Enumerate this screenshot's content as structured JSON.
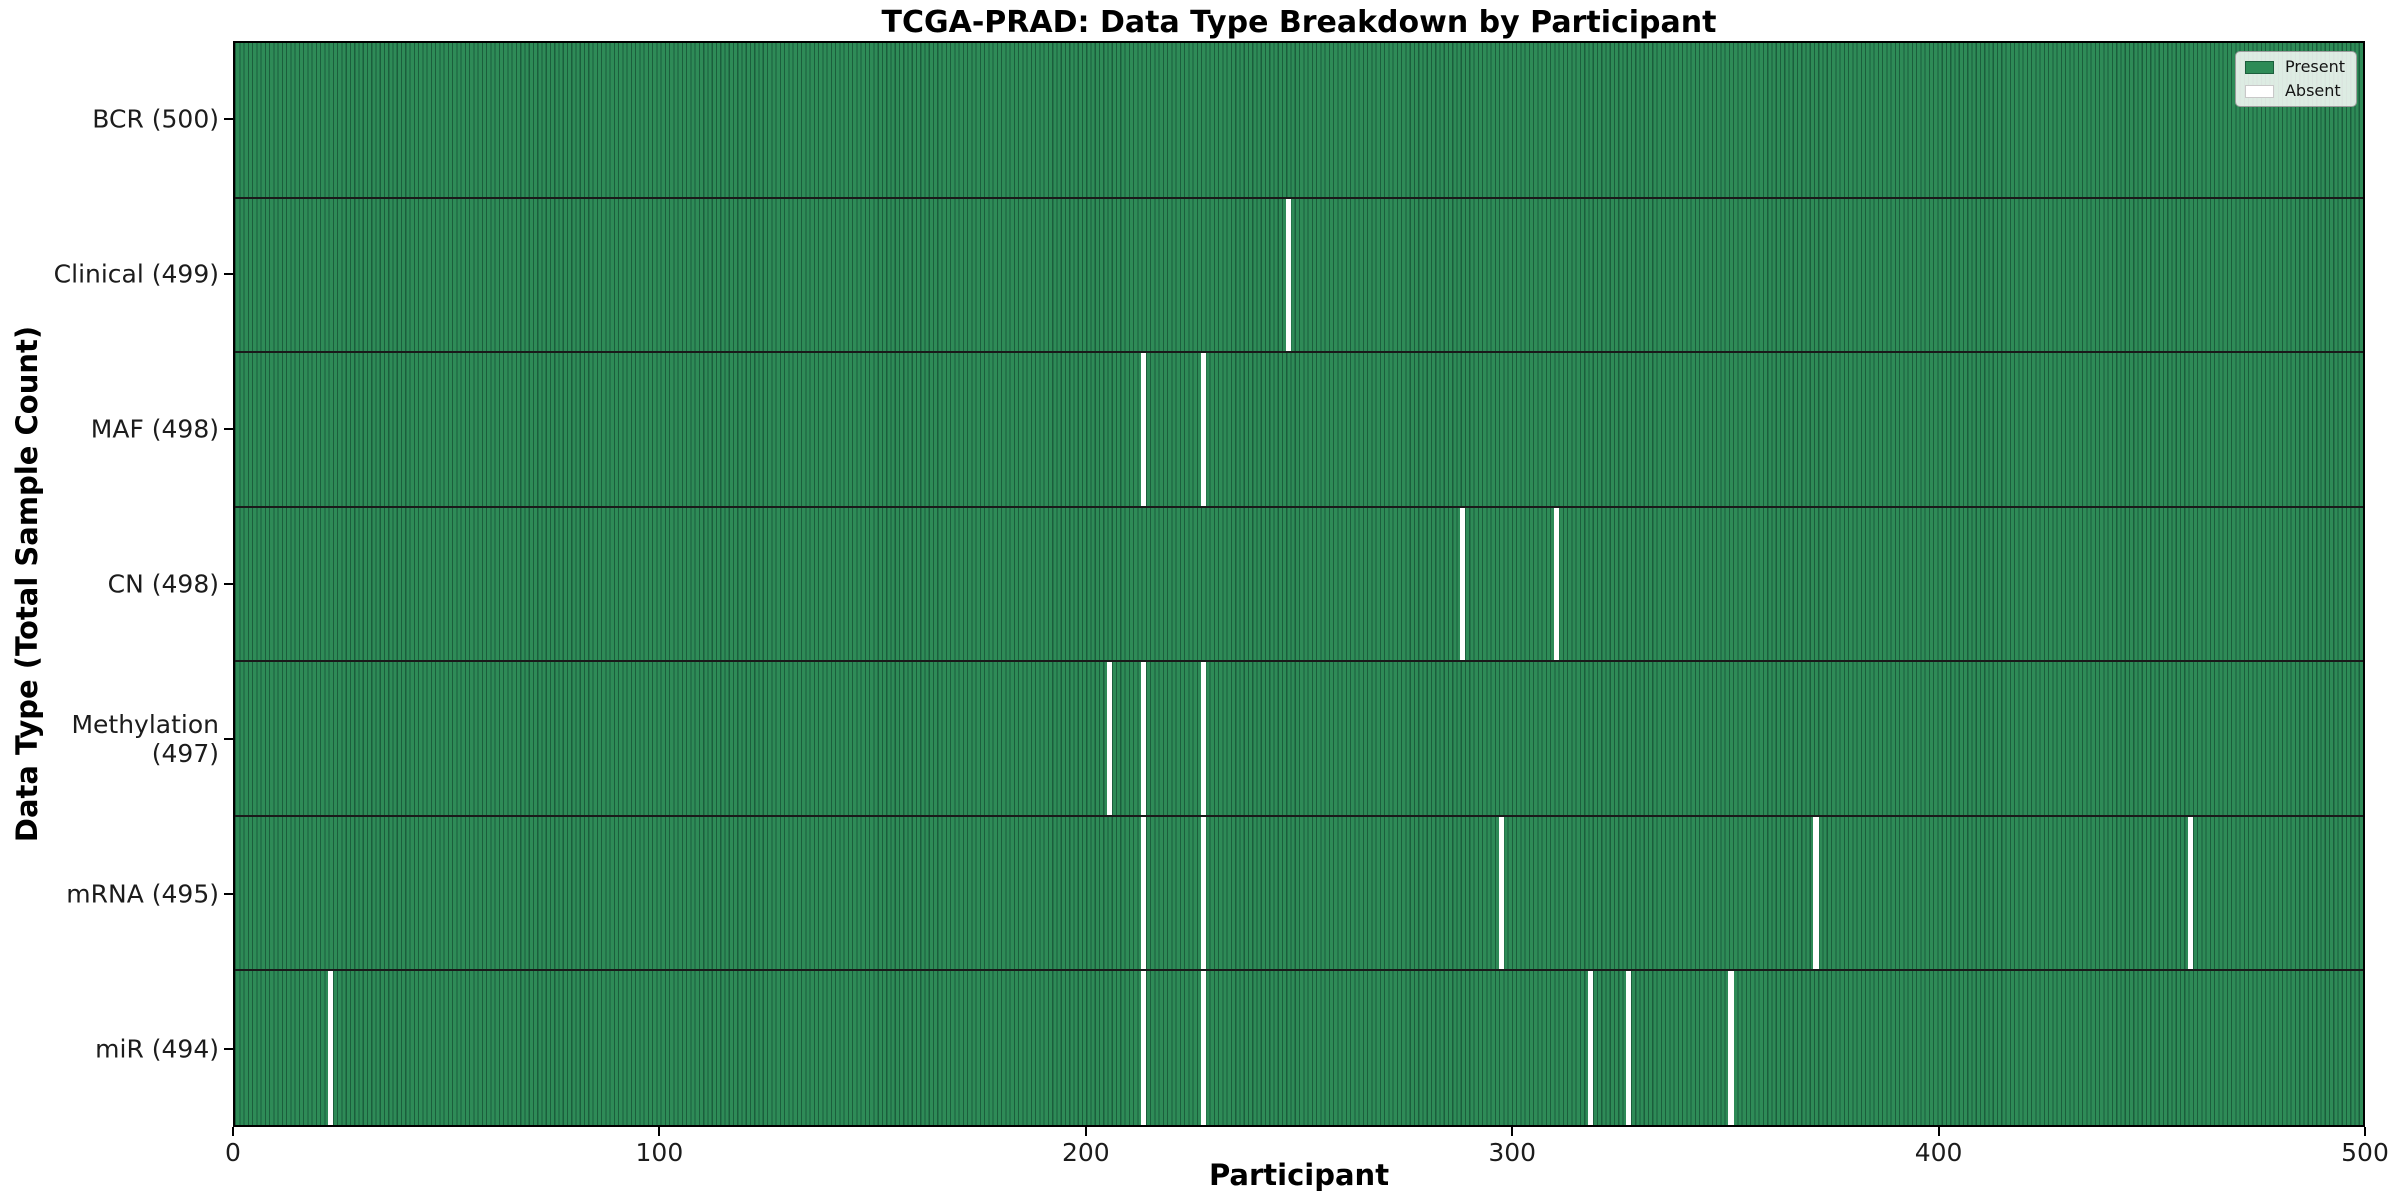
{
  "chart_data": {
    "type": "heatmap",
    "title": "TCGA-PRAD: Data Type Breakdown by Participant",
    "xlabel": "Participant",
    "ylabel": "Data Type (Total Sample Count)",
    "x_range": [
      0,
      500
    ],
    "x_ticks": [
      0,
      100,
      200,
      300,
      400,
      500
    ],
    "n_participants": 500,
    "grid": false,
    "legend": {
      "position": "upper right",
      "entries": [
        {
          "label": "Present",
          "color": "#2e8b57"
        },
        {
          "label": "Absent",
          "color": "#ffffff"
        }
      ]
    },
    "rows": [
      {
        "data_type": "BCR",
        "label": "BCR (500)",
        "total": 500,
        "absent_participants": []
      },
      {
        "data_type": "Clinical",
        "label": "Clinical (499)",
        "total": 499,
        "absent_participants": [
          247
        ]
      },
      {
        "data_type": "MAF",
        "label": "MAF (498)",
        "total": 498,
        "absent_participants": [
          213,
          227
        ]
      },
      {
        "data_type": "CN",
        "label": "CN (498)",
        "total": 498,
        "absent_participants": [
          288,
          310
        ]
      },
      {
        "data_type": "Methylation",
        "label": "Methylation (497)",
        "total": 497,
        "absent_participants": [
          205,
          213,
          227
        ]
      },
      {
        "data_type": "mRNA",
        "label": "mRNA (495)",
        "total": 495,
        "absent_participants": [
          213,
          227,
          297,
          371,
          459
        ]
      },
      {
        "data_type": "miR",
        "label": "miR (494)",
        "total": 494,
        "absent_participants": [
          22,
          213,
          227,
          318,
          327,
          351
        ]
      }
    ],
    "colors": {
      "present": "#2e8b57",
      "present_edge": "#1b5e3c",
      "absent": "#ffffff",
      "row_divider": "#1a1a1a",
      "axis": "#000000",
      "tick_text": "#1c1c1c"
    }
  }
}
